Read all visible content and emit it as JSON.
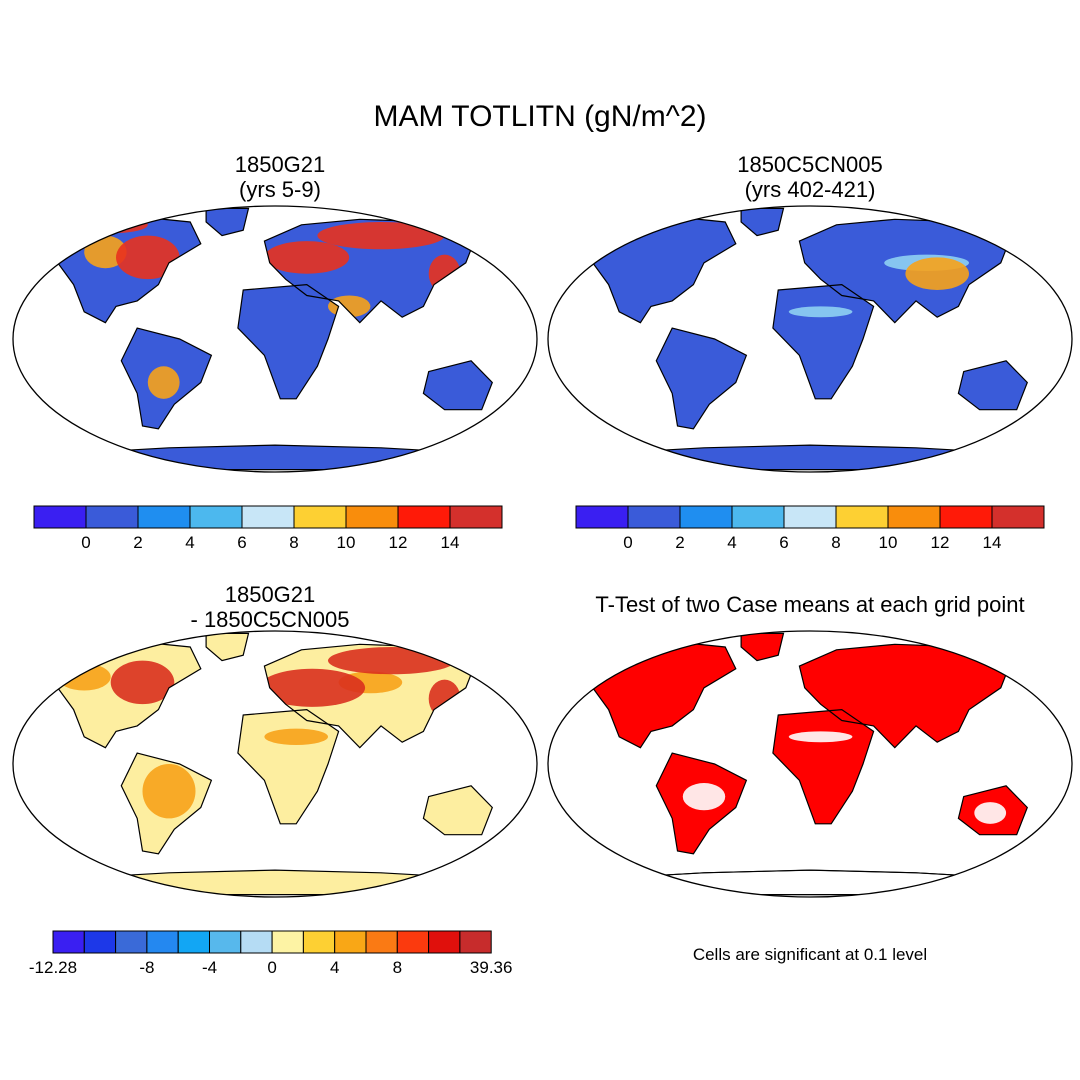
{
  "figure": {
    "title": "MAM TOTLITN (gN/m^2)",
    "colors": {
      "ocean": "#ffffff",
      "coast": "#000000"
    }
  },
  "panels": [
    {
      "id": "case1",
      "title_line1": "1850G21",
      "title_line2": "(yrs 5-9)",
      "field_color": "#3a5bd9",
      "hotspot_color": "#e8321e",
      "warm_color": "#f7a21a"
    },
    {
      "id": "case2",
      "title_line1": "1850C5CN005",
      "title_line2": "(yrs 402-421)",
      "field_color": "#3a5bd9",
      "hotspot_color": "#f7a21a",
      "warm_color": "#8fd0f2"
    },
    {
      "id": "diff",
      "title_line1": "1850G21",
      "title_line2": "- 1850C5CN005",
      "field_color": "#fdeea0",
      "hotspot_color": "#d9301e",
      "warm_color": "#f7a21a"
    },
    {
      "id": "ttest",
      "title_line1": "T-Test of two Case means at each grid point",
      "title_line2": "",
      "field_color": "#ff0000",
      "hotspot_color": "#ff0000",
      "warm_color": "#ffffff"
    }
  ],
  "colorbar_case": {
    "colors": [
      "#3a1ff2",
      "#3a5bd9",
      "#1f8ef0",
      "#4cb8ee",
      "#c8e6f7",
      "#fdd033",
      "#f98d0c",
      "#ff1a08",
      "#d4302c"
    ],
    "labels": [
      "0",
      "2",
      "4",
      "6",
      "8",
      "10",
      "12",
      "14"
    ]
  },
  "colorbar_diff": {
    "colors": [
      "#3a1ff2",
      "#1d38e8",
      "#3a6ad8",
      "#2488f0",
      "#12a6f4",
      "#57b8ec",
      "#b5dcf4",
      "#fdf3a4",
      "#fdd033",
      "#f9a716",
      "#fa7a14",
      "#fb3a0e",
      "#e0100c",
      "#c72c2c"
    ],
    "labels": [
      "-12.28",
      "-8",
      "-4",
      "0",
      "4",
      "8",
      "39.36"
    ]
  },
  "note": "Cells are significant at 0.1 level"
}
